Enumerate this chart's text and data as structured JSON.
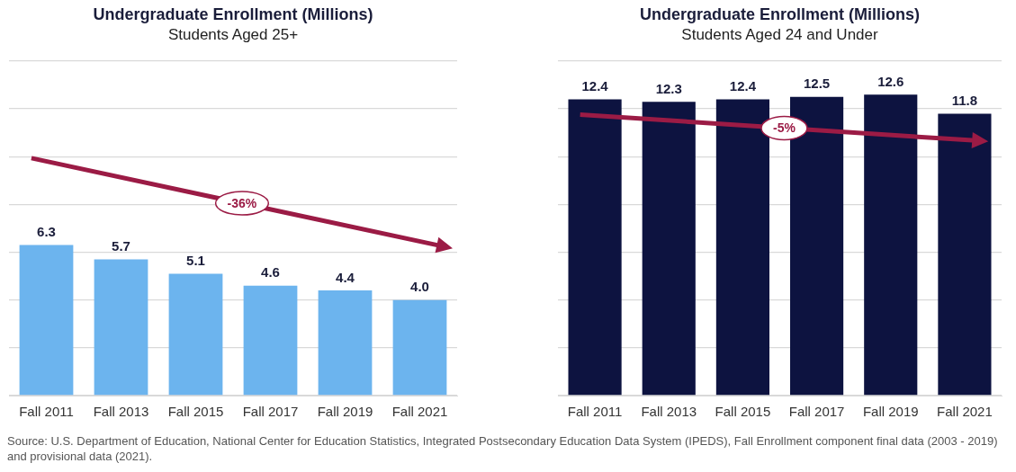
{
  "chart_data": [
    {
      "type": "bar",
      "title": "Undergraduate Enrollment (Millions)",
      "subtitle": "Students Aged 25+",
      "categories": [
        "Fall 2011",
        "Fall 2013",
        "Fall 2015",
        "Fall 2017",
        "Fall 2019",
        "Fall 2021"
      ],
      "values": [
        6.3,
        5.7,
        5.1,
        4.6,
        4.4,
        4.0
      ],
      "value_labels": [
        "6.3",
        "5.7",
        "5.1",
        "4.6",
        "4.4",
        "4.0"
      ],
      "color": "#6cb4ee",
      "ylim": [
        0,
        14
      ],
      "yticks": [
        {
          "value": 0,
          "label": null
        },
        {
          "value": 2,
          "label": null
        },
        {
          "value": 4,
          "label": null
        },
        {
          "value": 6,
          "label": null
        },
        {
          "value": 8,
          "label": null
        },
        {
          "value": 10,
          "label": null
        },
        {
          "value": 12,
          "label": null
        },
        {
          "value": 14,
          "label": null
        }
      ],
      "tick_labels": "x",
      "grid": "y",
      "legend": false,
      "annotations": [
        "-36%"
      ]
    },
    {
      "type": "bar",
      "title": "Undergraduate Enrollment (Millions)",
      "subtitle": "Students Aged 24 and Under",
      "categories": [
        "Fall 2011",
        "Fall 2013",
        "Fall 2015",
        "Fall 2017",
        "Fall 2019",
        "Fall 2021"
      ],
      "values": [
        12.4,
        12.3,
        12.4,
        12.5,
        12.6,
        11.8
      ],
      "color": "#0d1340",
      "data_labels": true,
      "ylim": [
        0,
        14
      ],
      "yticks": [
        {
          "value": 0,
          "label": null
        },
        {
          "value": 2,
          "label": null
        },
        {
          "value": 4,
          "label": null
        },
        {
          "value": 6,
          "label": null
        },
        {
          "value": 8,
          "label": null
        },
        {
          "value": 10,
          "label": null
        },
        {
          "value": 12,
          "label": null
        },
        {
          "value": 14,
          "label": null
        }
      ],
      "tick_labels": "x",
      "grid": "y",
      "legend": false,
      "annotations": [
        "-5%",
        "Source: U.S. Department of Education, National Center for Education Statistics, Integrated Postsecondary Education Data System (IPEDS), Fall Enrollment component final data (2003 - 2019) and provisional data (2021)."
      ]
    }
  ]
}
